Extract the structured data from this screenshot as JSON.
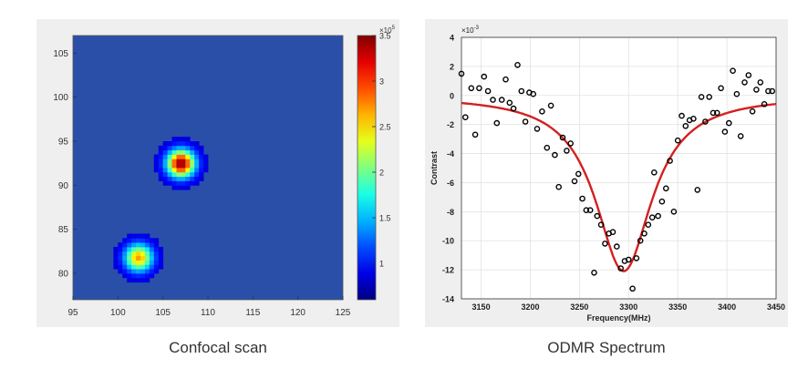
{
  "captions": {
    "left": "Confocal scan",
    "right": "ODMR Spectrum"
  },
  "colors": {
    "curve": "#d42020",
    "marker": "#000000",
    "map_background": "#2a4fa8"
  },
  "chart_data": [
    {
      "type": "heatmap",
      "title": "",
      "xlabel": "",
      "ylabel": "",
      "xlim": [
        95,
        125
      ],
      "ylim": [
        77,
        107
      ],
      "xticks": [
        "95",
        "100",
        "105",
        "110",
        "115",
        "120",
        "125"
      ],
      "yticks": [
        "80",
        "85",
        "90",
        "95",
        "100",
        "105"
      ],
      "background_value": 0.8,
      "spots": [
        {
          "x": 107,
          "y": 92.5,
          "peak": 3.5
        },
        {
          "x": 102.3,
          "y": 81.8,
          "peak": 2.7
        }
      ],
      "colorbar": {
        "range": [
          0.6,
          3.5
        ],
        "ticks": [
          "1",
          "1.5",
          "2",
          "2.5",
          "3",
          "3.5"
        ],
        "multiplier": "×10",
        "exponent": "5",
        "colormap": "jet"
      }
    },
    {
      "type": "scatter",
      "title": "",
      "xlabel": "Frequency(MHz)",
      "ylabel": "Contrast",
      "xlim": [
        3130,
        3450
      ],
      "ylim": [
        -14,
        4
      ],
      "xticks": [
        "3150",
        "3200",
        "3250",
        "3300",
        "3350",
        "3400",
        "3450"
      ],
      "yticks": [
        "4",
        "2",
        "0",
        "-2",
        "-4",
        "-6",
        "-8",
        "-10",
        "-12",
        "-14"
      ],
      "y_multiplier": "×10",
      "y_exponent": "-3",
      "grid": true,
      "fit": {
        "type": "lorentzian",
        "center": 3295,
        "depth": 12.1,
        "fwhm": 70
      },
      "points": [
        [
          3130,
          1.5
        ],
        [
          3134,
          -1.5
        ],
        [
          3140,
          0.5
        ],
        [
          3144,
          -2.7
        ],
        [
          3148,
          0.5
        ],
        [
          3153,
          1.3
        ],
        [
          3157,
          0.3
        ],
        [
          3162,
          -0.3
        ],
        [
          3166,
          -1.9
        ],
        [
          3171,
          -0.3
        ],
        [
          3175,
          1.1
        ],
        [
          3179,
          -0.5
        ],
        [
          3183,
          -0.9
        ],
        [
          3187,
          2.1
        ],
        [
          3191,
          0.3
        ],
        [
          3195,
          -1.8
        ],
        [
          3199,
          0.2
        ],
        [
          3203,
          0.1
        ],
        [
          3207,
          -2.3
        ],
        [
          3212,
          -1.1
        ],
        [
          3217,
          -3.6
        ],
        [
          3221,
          -0.7
        ],
        [
          3225,
          -4.1
        ],
        [
          3229,
          -6.3
        ],
        [
          3233,
          -2.9
        ],
        [
          3237,
          -3.8
        ],
        [
          3241,
          -3.3
        ],
        [
          3245,
          -5.9
        ],
        [
          3249,
          -5.4
        ],
        [
          3253,
          -7.1
        ],
        [
          3257,
          -7.9
        ],
        [
          3261,
          -7.9
        ],
        [
          3265,
          -12.2
        ],
        [
          3268,
          -8.3
        ],
        [
          3272,
          -8.9
        ],
        [
          3276,
          -10.2
        ],
        [
          3280,
          -9.5
        ],
        [
          3284,
          -9.4
        ],
        [
          3288,
          -10.4
        ],
        [
          3292,
          -11.9
        ],
        [
          3296,
          -11.4
        ],
        [
          3300,
          -11.3
        ],
        [
          3304,
          -13.3
        ],
        [
          3308,
          -11.2
        ],
        [
          3312,
          -10.0
        ],
        [
          3316,
          -9.5
        ],
        [
          3320,
          -8.9
        ],
        [
          3324,
          -8.4
        ],
        [
          3326,
          -5.3
        ],
        [
          3330,
          -8.3
        ],
        [
          3334,
          -7.3
        ],
        [
          3338,
          -6.4
        ],
        [
          3342,
          -4.5
        ],
        [
          3346,
          -8.0
        ],
        [
          3350,
          -3.1
        ],
        [
          3354,
          -1.4
        ],
        [
          3358,
          -2.1
        ],
        [
          3362,
          -1.7
        ],
        [
          3366,
          -1.6
        ],
        [
          3370,
          -6.5
        ],
        [
          3374,
          -0.1
        ],
        [
          3378,
          -1.8
        ],
        [
          3382,
          -0.1
        ],
        [
          3386,
          -1.2
        ],
        [
          3390,
          -1.2
        ],
        [
          3394,
          0.5
        ],
        [
          3398,
          -2.5
        ],
        [
          3402,
          -1.9
        ],
        [
          3406,
          1.7
        ],
        [
          3410,
          0.1
        ],
        [
          3414,
          -2.8
        ],
        [
          3418,
          0.9
        ],
        [
          3422,
          1.4
        ],
        [
          3426,
          -1.1
        ],
        [
          3430,
          0.4
        ],
        [
          3434,
          0.9
        ],
        [
          3438,
          -0.6
        ],
        [
          3442,
          0.3
        ],
        [
          3446,
          0.3
        ]
      ]
    }
  ]
}
